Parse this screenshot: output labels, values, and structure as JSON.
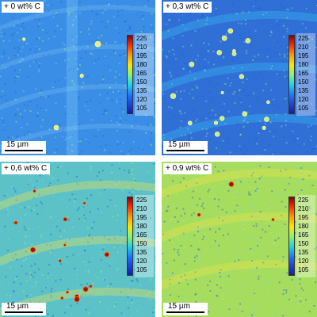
{
  "panels": [
    {
      "label": "+ 0 wt% C",
      "scale_bar": "15 µm",
      "colorbar_visible": true,
      "base_color": "#3b8ee6",
      "particles": 4
    },
    {
      "label": "+ 0,3 wt% C",
      "scale_bar": "15 µm",
      "colorbar_visible": true,
      "base_color": "#2f6fd6",
      "particles": 18
    },
    {
      "label": "+ 0,6 wt% C",
      "scale_bar": "15 µm",
      "colorbar_visible": true,
      "base_color": "#5cc2c8",
      "particles": 14
    },
    {
      "label": "+ 0,9 wt% C",
      "scale_bar": "15 µm",
      "colorbar_visible": true,
      "base_color": "#a6dd5e",
      "particles": 3
    }
  ],
  "colorbar": {
    "ticks": [
      "225",
      "210",
      "195",
      "180",
      "165",
      "150",
      "135",
      "120",
      "105"
    ],
    "colors": [
      "#8b0000",
      "#ff2a00",
      "#ff9a00",
      "#ffe600",
      "#8ff26a",
      "#1fd6e6",
      "#1f6bff",
      "#1a1aa8"
    ]
  }
}
